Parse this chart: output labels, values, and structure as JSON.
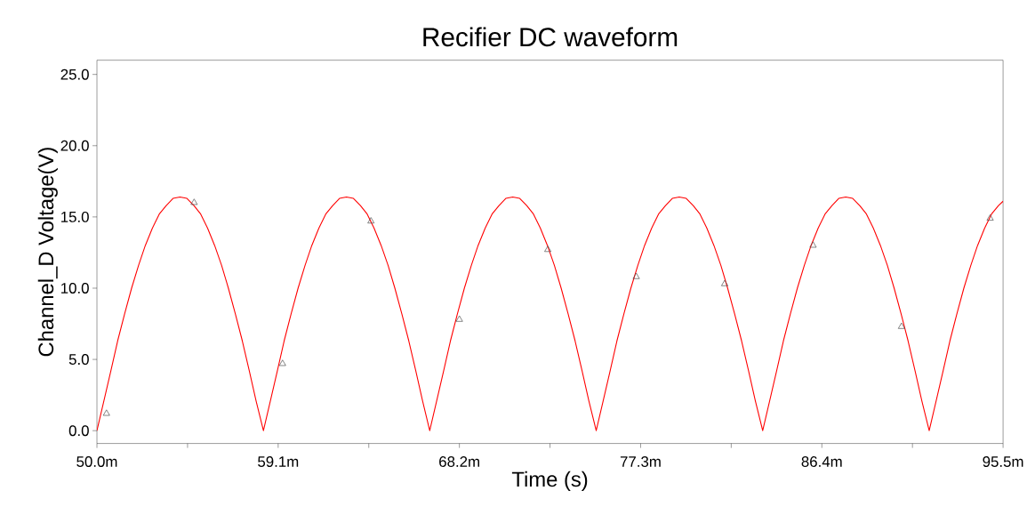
{
  "chart_data": {
    "type": "line",
    "title": "Recifier DC waveform",
    "xlabel": "Time (s)",
    "ylabel": "Channel_D Voltage(V)",
    "xlim": [
      50.0,
      95.5
    ],
    "ylim": [
      -0.9,
      26.0
    ],
    "xticks": [
      {
        "value": 50.0,
        "label": "50.0m"
      },
      {
        "value": 54.55,
        "label": null
      },
      {
        "value": 59.1,
        "label": "59.1m"
      },
      {
        "value": 63.65,
        "label": null
      },
      {
        "value": 68.2,
        "label": "68.2m"
      },
      {
        "value": 72.75,
        "label": null
      },
      {
        "value": 77.3,
        "label": "77.3m"
      },
      {
        "value": 81.85,
        "label": null
      },
      {
        "value": 86.4,
        "label": "86.4m"
      },
      {
        "value": 90.95,
        "label": null
      },
      {
        "value": 95.5,
        "label": "95.5m"
      }
    ],
    "yticks": [
      {
        "value": 0,
        "label": "0.0"
      },
      {
        "value": 5,
        "label": "5.0"
      },
      {
        "value": 10,
        "label": "10.0"
      },
      {
        "value": 15,
        "label": "15.0"
      },
      {
        "value": 20,
        "label": "20.0"
      },
      {
        "value": 25,
        "label": "25.0"
      }
    ],
    "grid": false,
    "series": [
      {
        "color": "#ff0000",
        "marker": "none",
        "line_style": "solid",
        "x": [
          50.0,
          50.35,
          50.7,
          51.04,
          51.39,
          51.74,
          52.09,
          52.43,
          52.78,
          53.13,
          53.48,
          53.82,
          54.17,
          54.52,
          54.87,
          55.21,
          55.56,
          55.91,
          56.26,
          56.6,
          56.95,
          57.3,
          57.65,
          57.99,
          58.36,
          58.71,
          59.06,
          59.4,
          59.75,
          60.1,
          60.45,
          60.79,
          61.14,
          61.49,
          61.84,
          62.18,
          62.53,
          62.88,
          63.23,
          63.57,
          63.92,
          64.27,
          64.62,
          64.96,
          65.31,
          65.66,
          66.01,
          66.35,
          66.71,
          67.06,
          67.41,
          67.75,
          68.1,
          68.45,
          68.8,
          69.14,
          69.49,
          69.84,
          70.19,
          70.53,
          70.88,
          71.23,
          71.58,
          71.92,
          72.27,
          72.62,
          72.97,
          73.31,
          73.66,
          74.01,
          74.36,
          74.7,
          75.07,
          75.42,
          75.77,
          76.11,
          76.46,
          76.81,
          77.16,
          77.5,
          77.85,
          78.2,
          78.55,
          78.89,
          79.24,
          79.59,
          79.94,
          80.28,
          80.63,
          80.98,
          81.33,
          81.67,
          82.02,
          82.37,
          82.72,
          83.06,
          83.43,
          83.78,
          84.13,
          84.47,
          84.82,
          85.17,
          85.52,
          85.86,
          86.21,
          86.56,
          86.91,
          87.25,
          87.6,
          87.95,
          88.3,
          88.64,
          88.99,
          89.34,
          89.69,
          90.03,
          90.38,
          90.73,
          91.08,
          91.42,
          91.79,
          92.14,
          92.49,
          92.83,
          93.18,
          93.53,
          93.88,
          94.22,
          94.57,
          94.92,
          95.27,
          95.5
        ],
        "values": [
          0,
          2.1,
          4.2,
          6.3,
          8.2,
          10.0,
          11.6,
          13.0,
          14.2,
          15.2,
          15.8,
          16.3,
          16.4,
          16.3,
          15.8,
          15.2,
          14.2,
          13.0,
          11.6,
          10.0,
          8.2,
          6.3,
          4.2,
          2.1,
          0,
          2.1,
          4.2,
          6.3,
          8.2,
          10.0,
          11.6,
          13.0,
          14.2,
          15.2,
          15.8,
          16.3,
          16.4,
          16.3,
          15.8,
          15.2,
          14.2,
          13.0,
          11.6,
          10.0,
          8.2,
          6.3,
          4.2,
          2.1,
          0,
          2.1,
          4.2,
          6.3,
          8.2,
          10.0,
          11.6,
          13.0,
          14.2,
          15.2,
          15.8,
          16.3,
          16.4,
          16.3,
          15.8,
          15.2,
          14.2,
          13.0,
          11.6,
          10.0,
          8.2,
          6.3,
          4.2,
          2.1,
          0,
          2.1,
          4.2,
          6.3,
          8.2,
          10.0,
          11.6,
          13.0,
          14.2,
          15.2,
          15.8,
          16.3,
          16.4,
          16.3,
          15.8,
          15.2,
          14.2,
          13.0,
          11.6,
          10.0,
          8.2,
          6.3,
          4.2,
          2.1,
          0,
          2.1,
          4.2,
          6.3,
          8.2,
          10.0,
          11.6,
          13.0,
          14.2,
          15.2,
          15.8,
          16.3,
          16.4,
          16.3,
          15.8,
          15.2,
          14.2,
          13.0,
          11.6,
          10.0,
          8.2,
          6.3,
          4.2,
          2.1,
          0,
          2.1,
          4.2,
          6.3,
          8.2,
          10.0,
          11.6,
          13.0,
          14.2,
          15.2,
          15.8,
          16.1
        ]
      },
      {
        "type": "scatter",
        "color": "#505050",
        "marker": "triangle",
        "x": [
          50.48,
          54.88,
          59.32,
          63.76,
          68.2,
          72.64,
          77.08,
          81.52,
          85.96,
          90.4,
          94.85
        ],
        "values": [
          1.2,
          16.0,
          4.7,
          14.7,
          7.8,
          12.7,
          10.8,
          10.3,
          13.0,
          7.3,
          14.9
        ]
      }
    ]
  }
}
